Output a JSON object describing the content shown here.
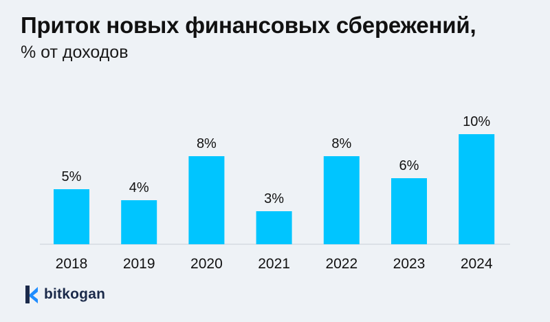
{
  "header": {
    "title": "Приток новых финансовых сбережений,",
    "subtitle": "% от доходов"
  },
  "brand": {
    "name": "bitkogan",
    "logo_icon": "bitkogan-logo-icon"
  },
  "colors": {
    "bar": "#00c5ff",
    "axis": "#c8cfd8",
    "text": "#111111",
    "background": "#eef2f6",
    "logo_dark": "#1b2a4a",
    "logo_blue": "#1e8cff"
  },
  "chart_data": {
    "type": "bar",
    "categories": [
      "2018",
      "2019",
      "2020",
      "2021",
      "2022",
      "2023",
      "2024"
    ],
    "values": [
      5,
      4,
      8,
      3,
      8,
      6,
      10
    ],
    "value_labels": [
      "5%",
      "4%",
      "8%",
      "3%",
      "8%",
      "6%",
      "10%"
    ],
    "title": "Приток новых финансовых сбережений,",
    "subtitle": "% от доходов",
    "xlabel": "",
    "ylabel": "",
    "ylim": [
      0,
      10
    ],
    "grid": false,
    "legend": "none"
  }
}
